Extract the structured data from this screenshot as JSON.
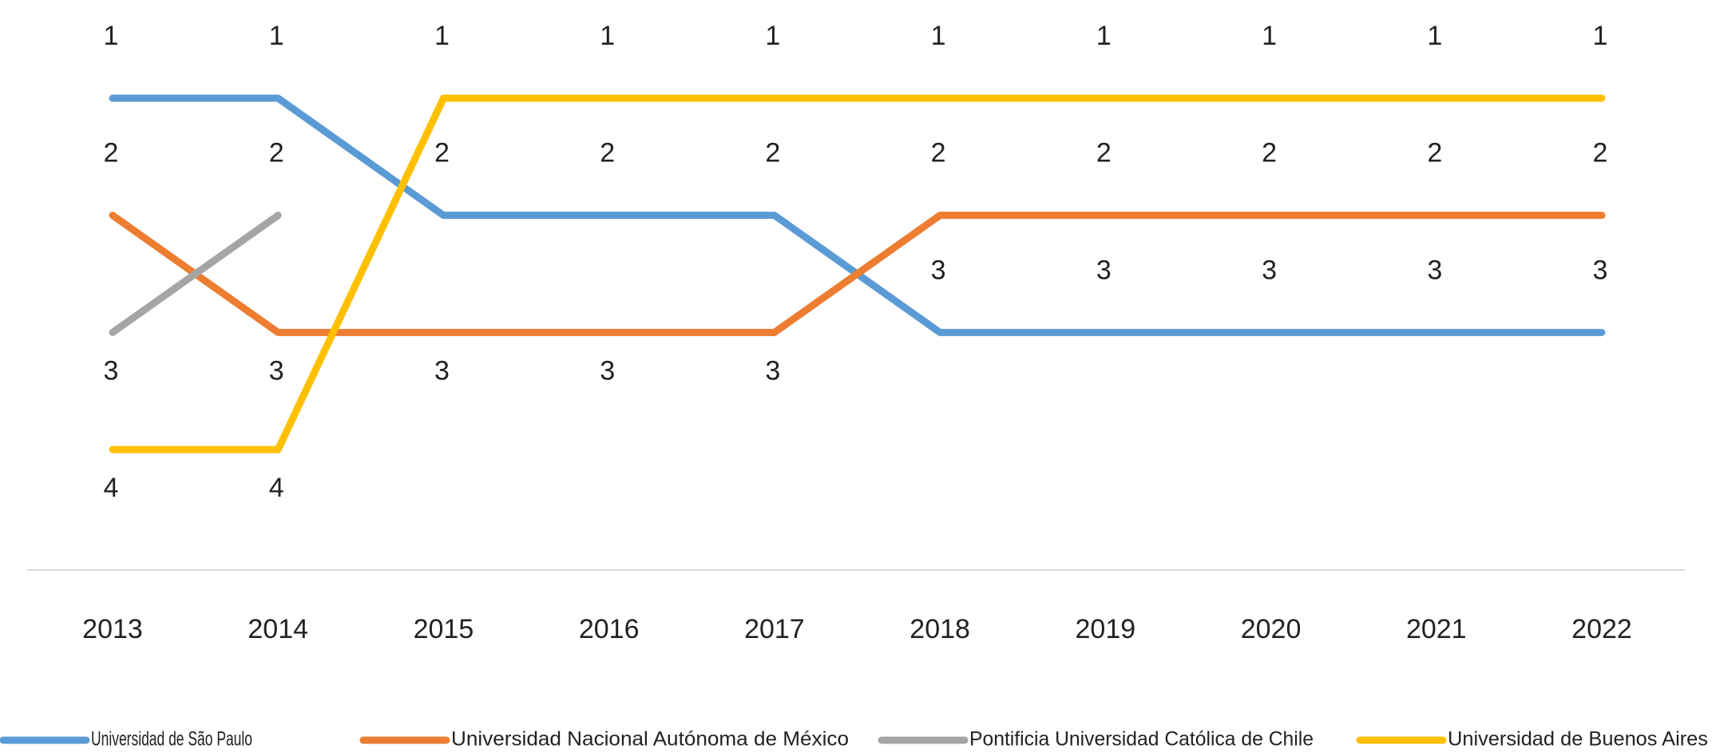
{
  "chart_data": {
    "type": "line",
    "x": [
      2013,
      2014,
      2015,
      2016,
      2017,
      2018,
      2019,
      2020,
      2021,
      2022
    ],
    "ylim": [
      4,
      1
    ],
    "series": [
      {
        "name": "Universidad de São Paulo",
        "color": "#5b9bd5",
        "values": [
          1,
          1,
          2,
          2,
          2,
          3,
          3,
          3,
          3,
          3
        ]
      },
      {
        "name": "Universidad Nacional Autónoma de México",
        "color": "#ed7d31",
        "values": [
          2,
          3,
          3,
          3,
          3,
          2,
          2,
          2,
          2,
          2
        ]
      },
      {
        "name": "Pontificia Universidad Católica de Chile",
        "color": "#a5a5a5",
        "values": [
          3,
          2,
          null,
          null,
          null,
          null,
          null,
          null,
          null,
          null
        ]
      },
      {
        "name": "Universidad de Buenos Aires",
        "color": "#ffc000",
        "values": [
          4,
          4,
          1,
          1,
          1,
          1,
          1,
          1,
          1,
          1
        ]
      }
    ],
    "legend": "bottom"
  }
}
